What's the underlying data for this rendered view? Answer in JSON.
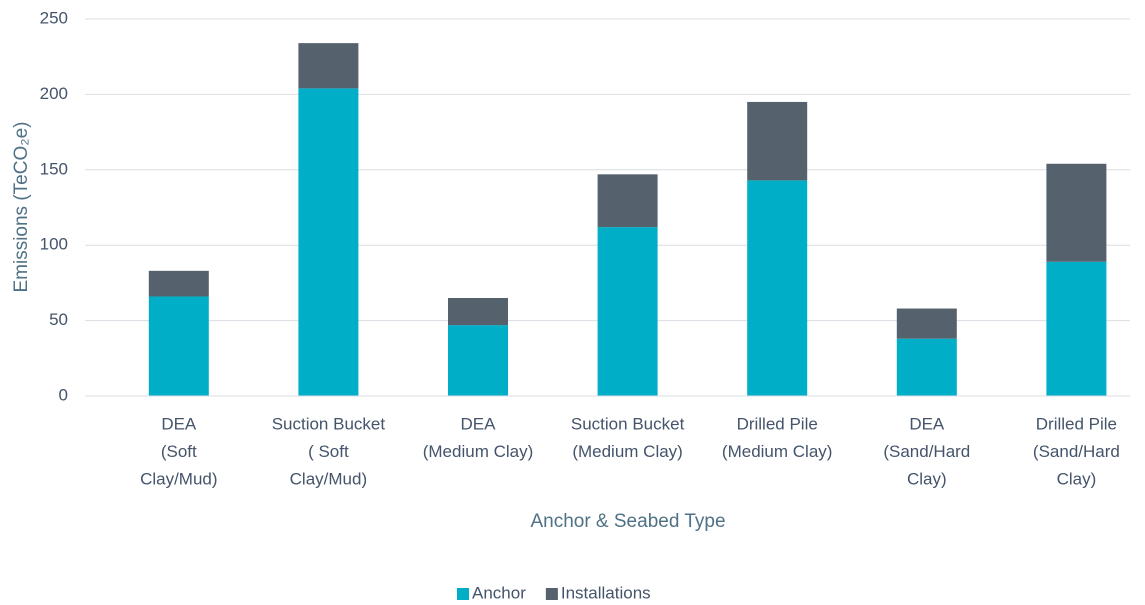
{
  "chart_data": {
    "type": "stacked_bar",
    "x_label": "Anchor & Seabed Type",
    "y_label": "Emissions (TeCO₂e)",
    "categories": [
      [
        "DEA",
        "(Soft",
        "Clay/Mud)"
      ],
      [
        "Suction Bucket",
        "( Soft",
        "Clay/Mud)"
      ],
      [
        "DEA",
        "(Medium Clay)"
      ],
      [
        "Suction Bucket",
        "(Medium Clay)"
      ],
      [
        "Drilled Pile",
        "(Medium Clay)"
      ],
      [
        "DEA",
        "(Sand/Hard",
        "Clay)"
      ],
      [
        "Drilled Pile",
        "(Sand/Hard",
        "Clay)"
      ]
    ],
    "series": [
      {
        "name": "Anchor",
        "color": "#00aec7",
        "values": [
          66,
          204,
          47,
          112,
          143,
          38,
          89
        ]
      },
      {
        "name": "Installations",
        "color": "#56616e",
        "values": [
          17,
          30,
          18,
          35,
          52,
          20,
          65
        ]
      }
    ],
    "ylim": [
      0,
      250
    ],
    "yticks": [
      0,
      50,
      100,
      150,
      200,
      250
    ],
    "grid": true,
    "legend": "bottom"
  }
}
